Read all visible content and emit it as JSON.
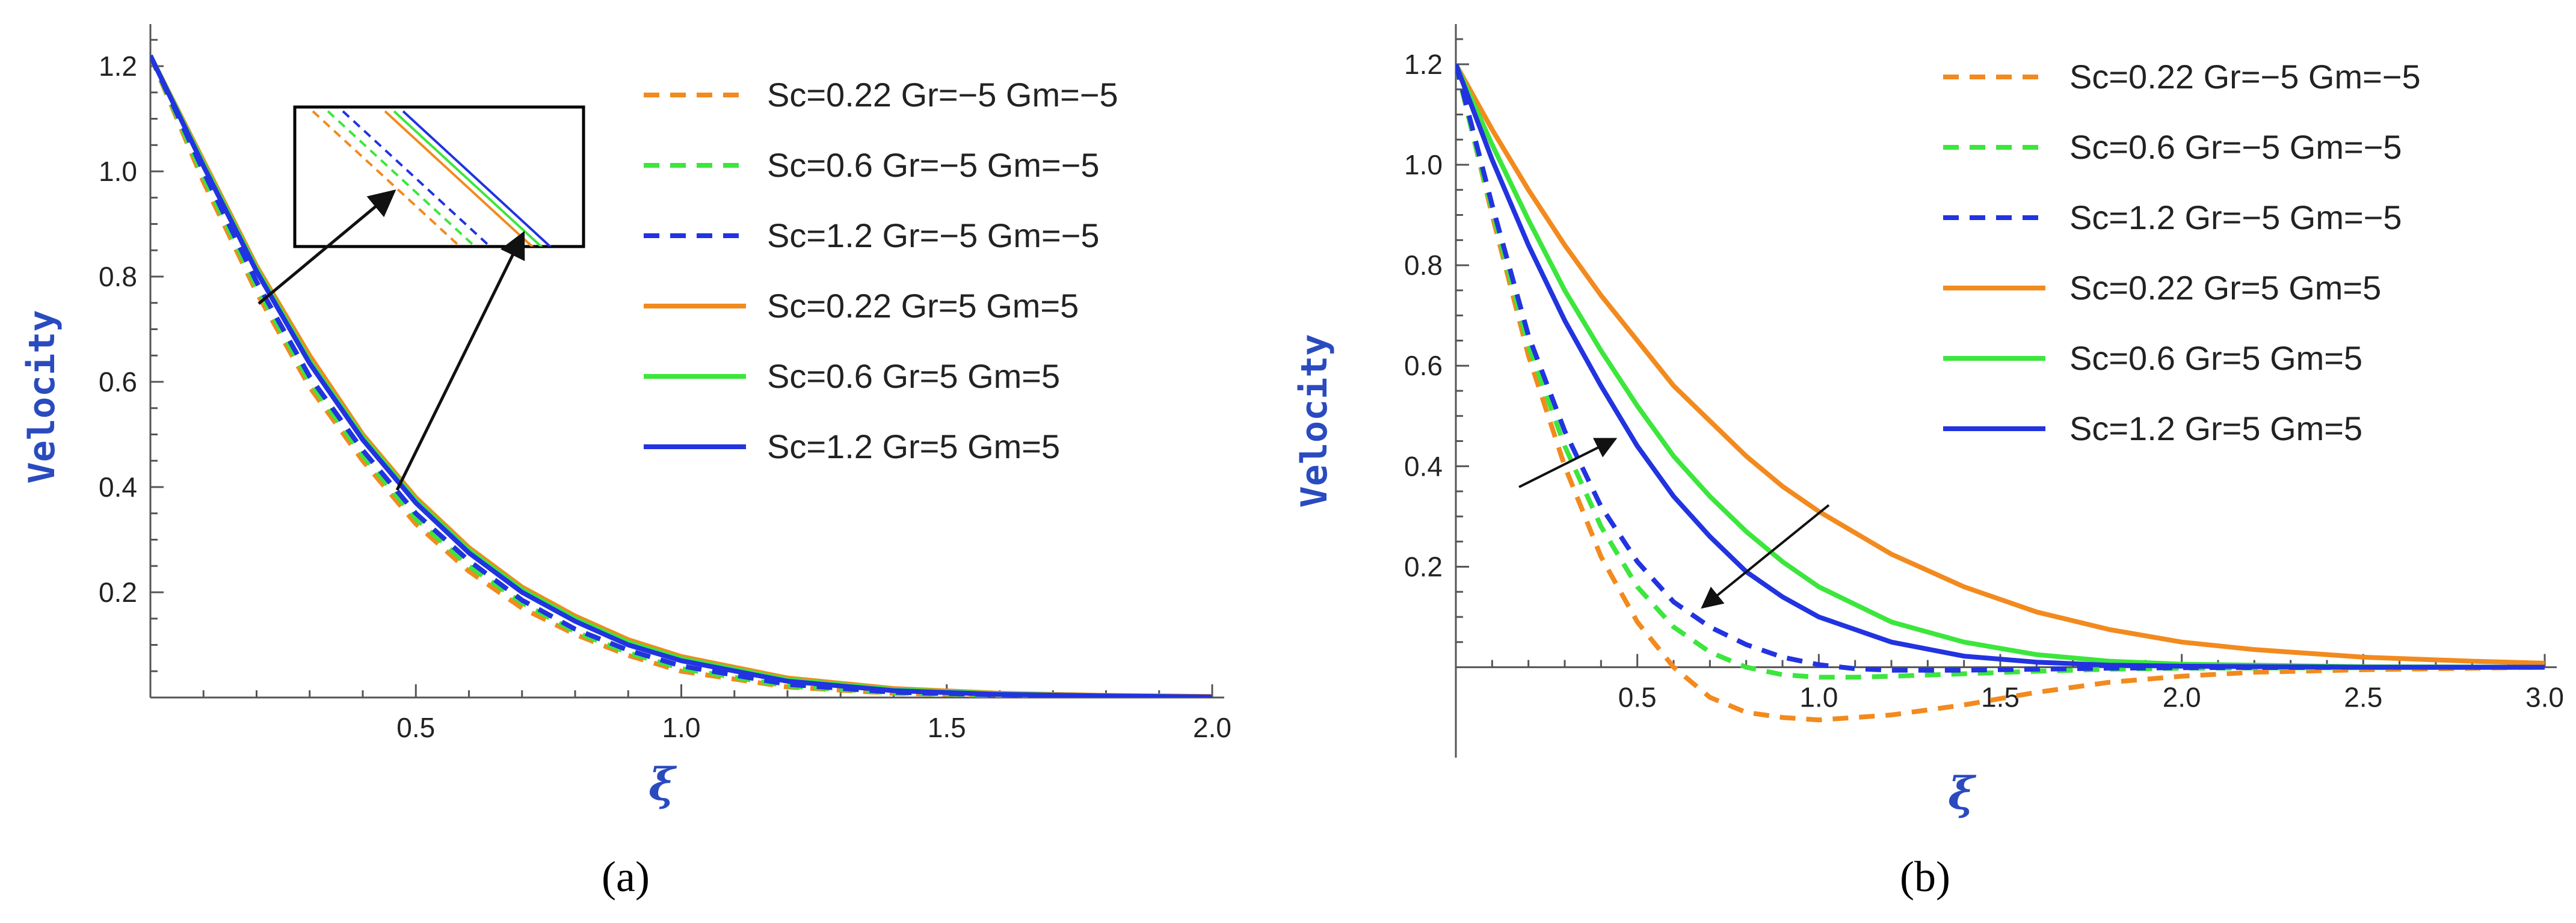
{
  "styles": {
    "orange": "#f28a1e",
    "green": "#3ce63c",
    "blue": "#2233e0",
    "axis": "#555555",
    "arrow": "#111111"
  },
  "chart_data": [
    {
      "type": "line",
      "panel_label": "(a)",
      "ylabel": "Velocity",
      "xlabel": "ξ",
      "xlim": [
        0,
        2.0
      ],
      "ylim": [
        0,
        1.28
      ],
      "x_ticks": [
        0.5,
        1.0,
        1.5,
        2.0
      ],
      "x_tick_labels": [
        "0.5",
        "1.0",
        "1.5",
        "2.0"
      ],
      "y_ticks": [
        0.2,
        0.4,
        0.6,
        0.8,
        1.0,
        1.2
      ],
      "y_tick_labels": [
        "0.2",
        "0.4",
        "0.6",
        "0.8",
        "1.0",
        "1.2"
      ],
      "legend_position": "top-right",
      "has_inset": true,
      "series": [
        {
          "name": "Sc=0.22 Gr=−5 Gm=−5",
          "color": "#f28a1e",
          "dash": true,
          "x": [
            0,
            0.1,
            0.2,
            0.3,
            0.4,
            0.5,
            0.6,
            0.7,
            0.8,
            0.9,
            1.0,
            1.2,
            1.4,
            1.6,
            1.8,
            2.0
          ],
          "y": [
            1.22,
            0.98,
            0.77,
            0.59,
            0.45,
            0.33,
            0.24,
            0.17,
            0.12,
            0.08,
            0.05,
            0.02,
            0.008,
            0.004,
            0.002,
            0.0
          ]
        },
        {
          "name": "Sc=0.6 Gr=−5 Gm=−5",
          "color": "#3ce63c",
          "dash": true,
          "x": [
            0,
            0.1,
            0.2,
            0.3,
            0.4,
            0.5,
            0.6,
            0.7,
            0.8,
            0.9,
            1.0,
            1.2,
            1.4,
            1.6,
            1.8,
            2.0
          ],
          "y": [
            1.22,
            0.99,
            0.78,
            0.6,
            0.46,
            0.34,
            0.25,
            0.18,
            0.125,
            0.085,
            0.055,
            0.022,
            0.009,
            0.004,
            0.002,
            0.0
          ]
        },
        {
          "name": "Sc=1.2 Gr=−5 Gm=−5",
          "color": "#2233e0",
          "dash": true,
          "x": [
            0,
            0.1,
            0.2,
            0.3,
            0.4,
            0.5,
            0.6,
            0.7,
            0.8,
            0.9,
            1.0,
            1.2,
            1.4,
            1.6,
            1.8,
            2.0
          ],
          "y": [
            1.22,
            1.0,
            0.79,
            0.61,
            0.47,
            0.35,
            0.26,
            0.185,
            0.13,
            0.09,
            0.06,
            0.025,
            0.01,
            0.005,
            0.002,
            0.0
          ]
        },
        {
          "name": "Sc=0.22 Gr=5 Gm=5",
          "color": "#f28a1e",
          "dash": false,
          "x": [
            0,
            0.1,
            0.2,
            0.3,
            0.4,
            0.5,
            0.6,
            0.7,
            0.8,
            0.9,
            1.0,
            1.2,
            1.4,
            1.6,
            1.8,
            2.0
          ],
          "y": [
            1.22,
            1.02,
            0.82,
            0.65,
            0.5,
            0.38,
            0.285,
            0.21,
            0.155,
            0.11,
            0.078,
            0.037,
            0.017,
            0.008,
            0.004,
            0.002
          ]
        },
        {
          "name": "Sc=0.6 Gr=5 Gm=5",
          "color": "#3ce63c",
          "dash": false,
          "x": [
            0,
            0.1,
            0.2,
            0.3,
            0.4,
            0.5,
            0.6,
            0.7,
            0.8,
            0.9,
            1.0,
            1.2,
            1.4,
            1.6,
            1.8,
            2.0
          ],
          "y": [
            1.22,
            1.015,
            0.815,
            0.64,
            0.495,
            0.375,
            0.28,
            0.205,
            0.15,
            0.105,
            0.074,
            0.034,
            0.015,
            0.007,
            0.003,
            0.001
          ]
        },
        {
          "name": "Sc=1.2 Gr=5 Gm=5",
          "color": "#2233e0",
          "dash": false,
          "x": [
            0,
            0.1,
            0.2,
            0.3,
            0.4,
            0.5,
            0.6,
            0.7,
            0.8,
            0.9,
            1.0,
            1.2,
            1.4,
            1.6,
            1.8,
            2.0
          ],
          "y": [
            1.22,
            1.01,
            0.81,
            0.635,
            0.49,
            0.37,
            0.275,
            0.2,
            0.145,
            0.1,
            0.07,
            0.031,
            0.013,
            0.006,
            0.003,
            0.001
          ]
        }
      ]
    },
    {
      "type": "line",
      "panel_label": "(b)",
      "ylabel": "Velocity",
      "xlabel": "ξ",
      "xlim": [
        0,
        3.0
      ],
      "ylim": [
        -0.18,
        1.28
      ],
      "x_ticks": [
        0.5,
        1.0,
        1.5,
        2.0,
        2.5,
        3.0
      ],
      "x_tick_labels": [
        "0.5",
        "1.0",
        "1.5",
        "2.0",
        "2.5",
        "3.0"
      ],
      "y_ticks": [
        0.2,
        0.4,
        0.6,
        0.8,
        1.0,
        1.2
      ],
      "y_tick_labels": [
        "0.2",
        "0.4",
        "0.6",
        "0.8",
        "1.0",
        "1.2"
      ],
      "legend_position": "top-right",
      "series": [
        {
          "name": "Sc=0.22 Gr=−5 Gm=−5",
          "color": "#f28a1e",
          "dash": true,
          "x": [
            0,
            0.05,
            0.1,
            0.2,
            0.3,
            0.4,
            0.5,
            0.6,
            0.7,
            0.8,
            0.9,
            1.0,
            1.1,
            1.2,
            1.4,
            1.6,
            1.8,
            2.0,
            2.2,
            2.5,
            2.8,
            3.0
          ],
          "y": [
            1.2,
            1.05,
            0.9,
            0.62,
            0.4,
            0.22,
            0.09,
            -0.0,
            -0.06,
            -0.09,
            -0.1,
            -0.105,
            -0.1,
            -0.095,
            -0.075,
            -0.05,
            -0.03,
            -0.018,
            -0.01,
            -0.005,
            -0.002,
            0.0
          ]
        },
        {
          "name": "Sc=0.6 Gr=−5 Gm=−5",
          "color": "#3ce63c",
          "dash": true,
          "x": [
            0,
            0.05,
            0.1,
            0.2,
            0.3,
            0.4,
            0.5,
            0.6,
            0.7,
            0.8,
            0.9,
            1.0,
            1.1,
            1.2,
            1.4,
            1.6,
            1.8,
            2.0,
            2.5,
            3.0
          ],
          "y": [
            1.2,
            1.05,
            0.91,
            0.64,
            0.44,
            0.28,
            0.16,
            0.08,
            0.03,
            0.0,
            -0.015,
            -0.02,
            -0.02,
            -0.018,
            -0.013,
            -0.008,
            -0.004,
            -0.002,
            -0.001,
            0.0
          ]
        },
        {
          "name": "Sc=1.2 Gr=−5 Gm=−5",
          "color": "#2233e0",
          "dash": true,
          "x": [
            0,
            0.05,
            0.1,
            0.2,
            0.3,
            0.4,
            0.5,
            0.6,
            0.7,
            0.8,
            0.9,
            1.0,
            1.1,
            1.2,
            1.4,
            1.6,
            1.8,
            2.0,
            2.5,
            3.0
          ],
          "y": [
            1.2,
            1.06,
            0.92,
            0.66,
            0.47,
            0.32,
            0.21,
            0.13,
            0.08,
            0.045,
            0.02,
            0.005,
            -0.003,
            -0.006,
            -0.006,
            -0.004,
            -0.002,
            -0.001,
            0.0,
            0.0
          ]
        },
        {
          "name": "Sc=0.22 Gr=5 Gm=5",
          "color": "#f28a1e",
          "dash": false,
          "x": [
            0,
            0.1,
            0.2,
            0.3,
            0.4,
            0.5,
            0.6,
            0.7,
            0.8,
            0.9,
            1.0,
            1.2,
            1.4,
            1.6,
            1.8,
            2.0,
            2.2,
            2.5,
            2.8,
            3.0
          ],
          "y": [
            1.2,
            1.07,
            0.95,
            0.84,
            0.74,
            0.65,
            0.56,
            0.49,
            0.42,
            0.36,
            0.31,
            0.225,
            0.16,
            0.11,
            0.075,
            0.05,
            0.035,
            0.02,
            0.012,
            0.008
          ]
        },
        {
          "name": "Sc=0.6 Gr=5 Gm=5",
          "color": "#3ce63c",
          "dash": false,
          "x": [
            0,
            0.1,
            0.2,
            0.3,
            0.4,
            0.5,
            0.6,
            0.7,
            0.8,
            0.9,
            1.0,
            1.2,
            1.4,
            1.6,
            1.8,
            2.0,
            2.5,
            3.0
          ],
          "y": [
            1.2,
            1.04,
            0.89,
            0.75,
            0.63,
            0.52,
            0.42,
            0.34,
            0.27,
            0.21,
            0.16,
            0.09,
            0.05,
            0.025,
            0.012,
            0.006,
            0.001,
            0.0
          ]
        },
        {
          "name": "Sc=1.2 Gr=5 Gm=5",
          "color": "#2233e0",
          "dash": false,
          "x": [
            0,
            0.1,
            0.2,
            0.3,
            0.4,
            0.5,
            0.6,
            0.7,
            0.8,
            0.9,
            1.0,
            1.2,
            1.4,
            1.6,
            1.8,
            2.0,
            2.5,
            3.0
          ],
          "y": [
            1.2,
            1.01,
            0.84,
            0.69,
            0.56,
            0.44,
            0.34,
            0.26,
            0.19,
            0.14,
            0.1,
            0.05,
            0.022,
            0.01,
            0.004,
            0.002,
            0.0,
            0.0
          ]
        }
      ]
    }
  ]
}
